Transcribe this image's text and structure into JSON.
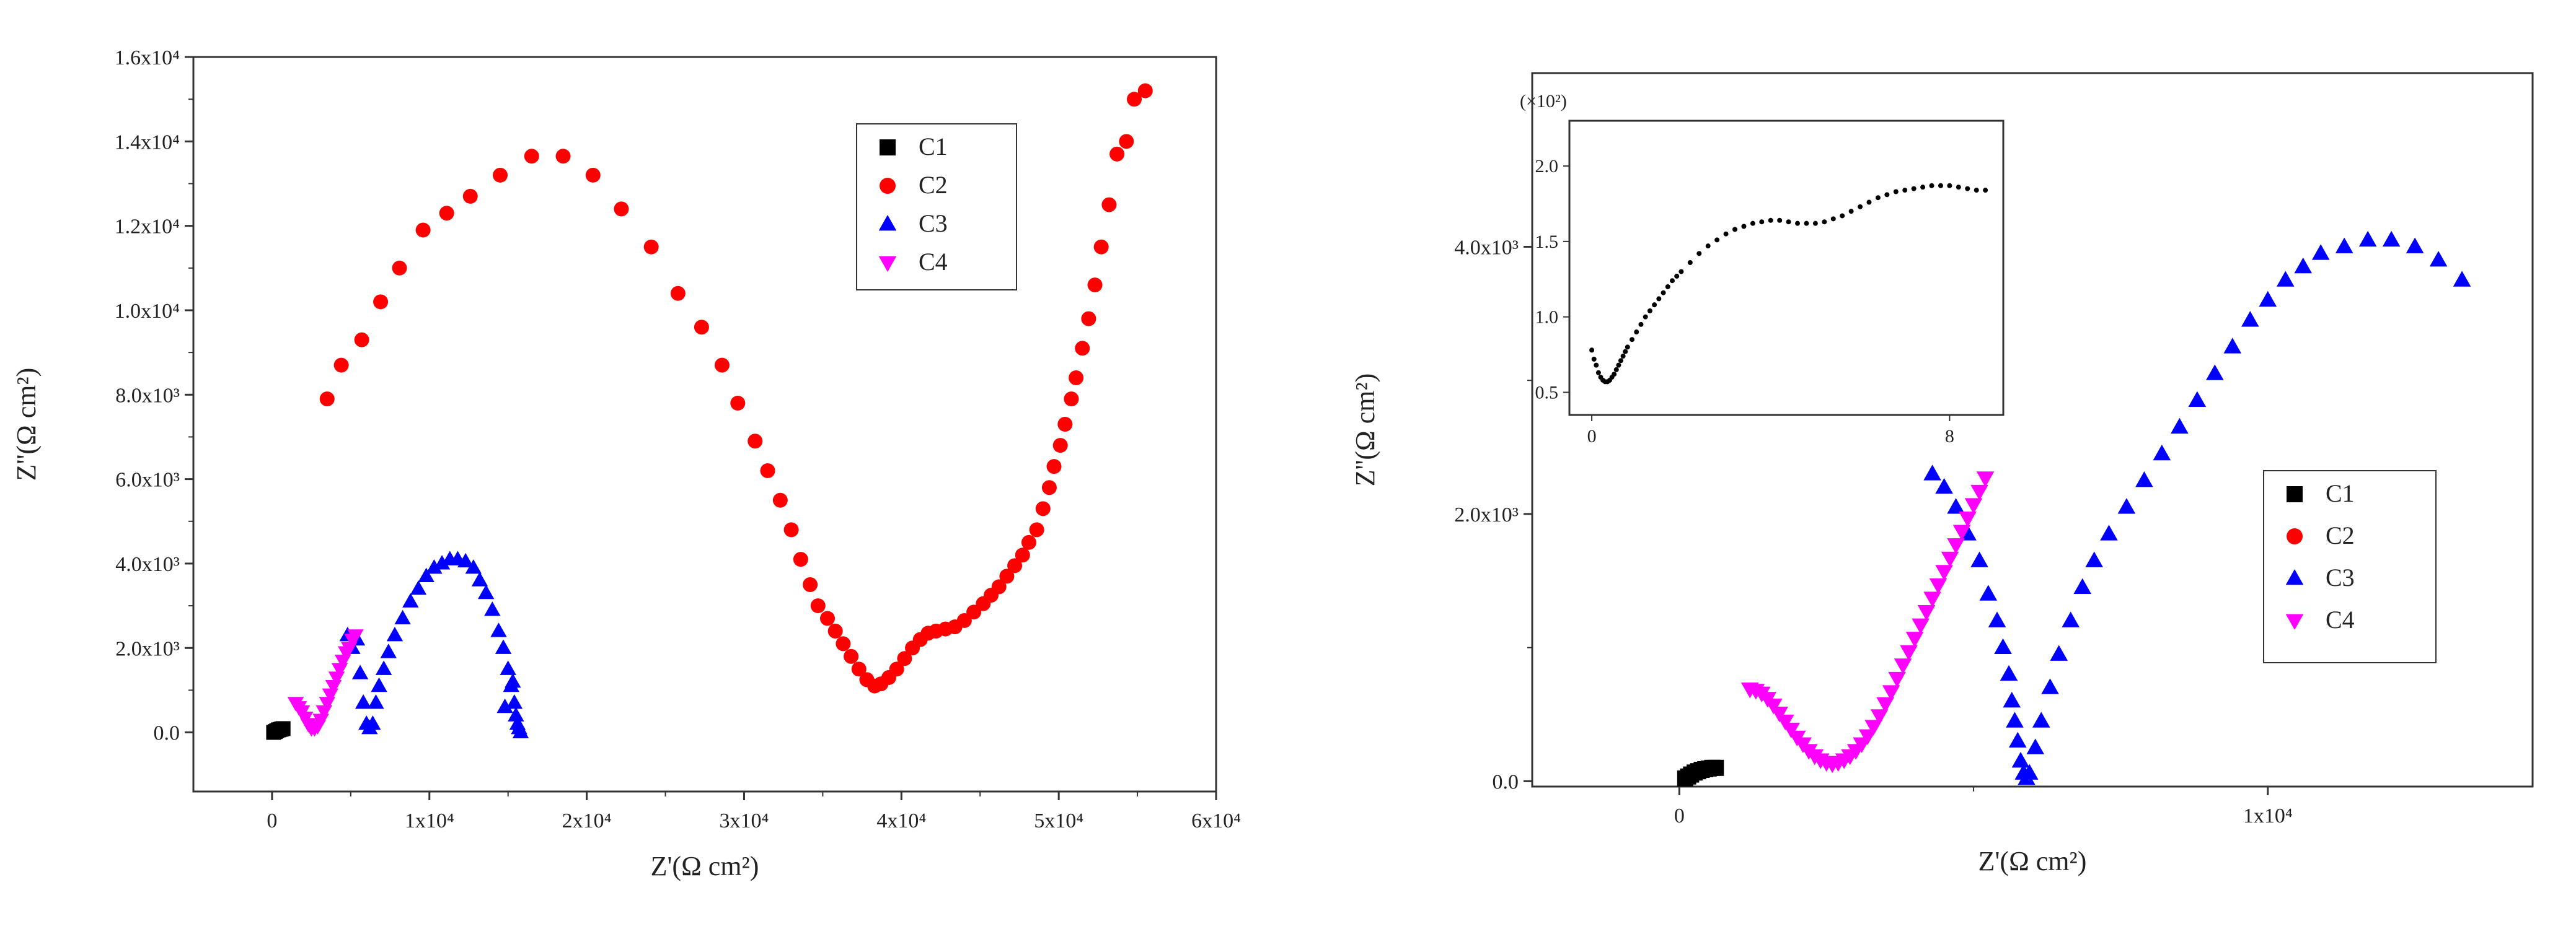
{
  "chart_data": [
    {
      "type": "scatter",
      "xlabel": "Z'(Ω cm²)",
      "ylabel": "Z''(Ω cm²)",
      "xlim": [
        -5000,
        60000
      ],
      "ylim": [
        -1400,
        16000
      ],
      "x_ticks": [
        {
          "v": 0,
          "label": "0"
        },
        {
          "v": 10000,
          "label": "1x10⁴"
        },
        {
          "v": 20000,
          "label": "2x10⁴"
        },
        {
          "v": 30000,
          "label": "3x10⁴"
        },
        {
          "v": 40000,
          "label": "4x10⁴"
        },
        {
          "v": 50000,
          "label": "5x10⁴"
        },
        {
          "v": 60000,
          "label": "6x10⁴"
        }
      ],
      "y_ticks": [
        {
          "v": 0,
          "label": "0.0"
        },
        {
          "v": 2000,
          "label": "2.0x10³"
        },
        {
          "v": 4000,
          "label": "4.0x10³"
        },
        {
          "v": 6000,
          "label": "6.0x10³"
        },
        {
          "v": 8000,
          "label": "8.0x10³"
        },
        {
          "v": 10000,
          "label": "1.0x10⁴"
        },
        {
          "v": 12000,
          "label": "1.2x10⁴"
        },
        {
          "v": 14000,
          "label": "1.4x10⁴"
        },
        {
          "v": 16000,
          "label": "1.6x10⁴"
        }
      ],
      "legend": {
        "placement": "top-right"
      },
      "series": [
        {
          "name": "C1",
          "marker": "square",
          "color": "#000000",
          "x": [
            100,
            200,
            300,
            400,
            500,
            600,
            700
          ],
          "y": [
            0,
            20,
            40,
            60,
            70,
            80,
            90
          ]
        },
        {
          "name": "C2",
          "marker": "circle",
          "color": "#ff0000",
          "x": [
            3500,
            4400,
            5700,
            6900,
            8100,
            9600,
            11100,
            12600,
            14500,
            16500,
            18500,
            20400,
            22200,
            24100,
            25800,
            27300,
            28600,
            29600,
            30700,
            31500,
            32300,
            33000,
            33600,
            34200,
            34700,
            35300,
            35800,
            36300,
            36800,
            37300,
            37800,
            38300,
            38700,
            39200,
            39700,
            40200,
            40700,
            41200,
            41700,
            42200,
            42800,
            43400,
            44000,
            44600,
            45200,
            45700,
            46200,
            46700,
            47200,
            47700,
            48100,
            48600,
            49000,
            49400,
            49700,
            50100,
            50400,
            50800,
            51100,
            51500,
            51900,
            52300,
            52700,
            53200,
            53700,
            54300,
            54800,
            55500
          ],
          "y": [
            7900,
            8700,
            9300,
            10200,
            11000,
            11900,
            12300,
            12700,
            13200,
            13650,
            13650,
            13200,
            12400,
            11500,
            10400,
            9600,
            8700,
            7800,
            6900,
            6200,
            5500,
            4800,
            4100,
            3500,
            3000,
            2700,
            2400,
            2100,
            1800,
            1500,
            1250,
            1100,
            1150,
            1300,
            1500,
            1750,
            2000,
            2200,
            2350,
            2400,
            2450,
            2500,
            2650,
            2850,
            3050,
            3250,
            3450,
            3700,
            3950,
            4200,
            4500,
            4800,
            5300,
            5800,
            6300,
            6800,
            7300,
            7900,
            8400,
            9100,
            9800,
            10600,
            11500,
            12500,
            13700,
            14000,
            15000,
            15200
          ]
        },
        {
          "name": "C3",
          "marker": "triangle-up",
          "color": "#0000ff",
          "x": [
            5400,
            5600,
            5800,
            6000,
            6200,
            6400,
            6600,
            6800,
            7100,
            7400,
            7800,
            8300,
            8800,
            9300,
            9800,
            10300,
            10800,
            11300,
            11800,
            12300,
            12800,
            13200,
            13600,
            14000,
            14400,
            14700,
            15000,
            15200,
            15400,
            15500,
            15600,
            15700,
            15800,
            4800,
            5100,
            14800,
            15300
          ],
          "y": [
            2200,
            1400,
            700,
            200,
            100,
            200,
            700,
            1100,
            1500,
            1900,
            2300,
            2700,
            3100,
            3400,
            3700,
            3900,
            4000,
            4100,
            4100,
            4050,
            3900,
            3600,
            3300,
            2900,
            2400,
            2000,
            1500,
            1100,
            700,
            400,
            200,
            100,
            0,
            2300,
            2000,
            600,
            1200
          ]
        },
        {
          "name": "C4",
          "marker": "triangle-down",
          "color": "#ff00ff",
          "x": [
            1500,
            1700,
            1900,
            2100,
            2300,
            2500,
            2700,
            2900,
            3100,
            3300,
            3500,
            3700,
            3900,
            4100,
            4300,
            4500,
            4700,
            4900,
            5100,
            5300
          ],
          "y": [
            700,
            600,
            500,
            350,
            200,
            100,
            100,
            150,
            300,
            500,
            700,
            900,
            1100,
            1300,
            1500,
            1700,
            1900,
            2000,
            2200,
            2300
          ]
        }
      ]
    },
    {
      "type": "scatter",
      "xlabel": "Z'(Ω cm²)",
      "ylabel": "Z''(Ω cm²)",
      "xlim": [
        -2500,
        14500
      ],
      "ylim": [
        -40,
        5300
      ],
      "x_ticks": [
        {
          "v": 0,
          "label": "0"
        },
        {
          "v": 10000,
          "label": "1x10⁴"
        }
      ],
      "y_ticks": [
        {
          "v": 0,
          "label": "0.0"
        },
        {
          "v": 2000,
          "label": "2.0x10³"
        },
        {
          "v": 4000,
          "label": "4.0x10³"
        }
      ],
      "legend": {
        "placement": "bottom-right"
      },
      "series": [
        {
          "name": "C1",
          "marker": "square",
          "color": "#000000",
          "x": [
            100,
            150,
            200,
            260,
            320,
            380,
            440,
            500,
            560,
            620
          ],
          "y": [
            20,
            35,
            50,
            65,
            75,
            85,
            90,
            95,
            100,
            100
          ]
        },
        {
          "name": "C2",
          "marker": "circle",
          "color": "#ff0000",
          "x": [],
          "y": []
        },
        {
          "name": "C3",
          "marker": "triangle-up",
          "color": "#0000ff",
          "x": [
            4300,
            4500,
            4700,
            4900,
            5100,
            5250,
            5400,
            5500,
            5600,
            5650,
            5700,
            5750,
            5800,
            5850,
            5900,
            5950,
            6050,
            6150,
            6300,
            6450,
            6650,
            6850,
            7050,
            7300,
            7600,
            7900,
            8200,
            8500,
            8800,
            9100,
            9400,
            9700,
            10000,
            10300,
            10600,
            10900,
            11300,
            11700,
            12100,
            12500,
            12900,
            13300
          ],
          "y": [
            2300,
            2200,
            2050,
            1850,
            1650,
            1400,
            1200,
            1000,
            800,
            600,
            450,
            300,
            150,
            60,
            20,
            60,
            250,
            450,
            700,
            950,
            1200,
            1450,
            1650,
            1850,
            2050,
            2250,
            2450,
            2650,
            2850,
            3050,
            3250,
            3450,
            3600,
            3750,
            3850,
            3950,
            4000,
            4050,
            4050,
            4000,
            3900,
            3750
          ]
        },
        {
          "name": "C4",
          "marker": "triangle-down",
          "color": "#ff00ff",
          "x": [
            1200,
            1300,
            1400,
            1500,
            1600,
            1700,
            1800,
            1900,
            2000,
            2100,
            2200,
            2300,
            2400,
            2500,
            2600,
            2700,
            2800,
            2900,
            3000,
            3100,
            3200,
            3300,
            3400,
            3500,
            3600,
            3700,
            3800,
            3900,
            4000,
            4100,
            4200,
            4300,
            4400,
            4500,
            4600,
            4700,
            4800,
            4900,
            5000,
            5100,
            5200
          ],
          "y": [
            690,
            680,
            660,
            620,
            570,
            510,
            450,
            390,
            330,
            280,
            230,
            190,
            160,
            140,
            130,
            140,
            160,
            190,
            230,
            280,
            340,
            410,
            490,
            580,
            670,
            770,
            870,
            970,
            1070,
            1170,
            1270,
            1370,
            1470,
            1570,
            1670,
            1770,
            1870,
            1970,
            2070,
            2170,
            2270
          ]
        }
      ],
      "inset": {
        "y_multiplier": "(×10²)",
        "x_ticks": [
          {
            "v": 0,
            "label": "0"
          },
          {
            "v": 8,
            "label": "8"
          }
        ],
        "y_ticks": [
          {
            "v": 0.5,
            "label": "0.5"
          },
          {
            "v": 1.0,
            "label": "1.0"
          },
          {
            "v": 1.5,
            "label": "1.5"
          },
          {
            "v": 2.0,
            "label": "2.0"
          }
        ],
        "xlim": [
          -0.5,
          9.2
        ],
        "ylim": [
          0.35,
          2.3
        ],
        "x": [
          0,
          0.05,
          0.1,
          0.15,
          0.2,
          0.25,
          0.3,
          0.35,
          0.4,
          0.45,
          0.5,
          0.55,
          0.6,
          0.65,
          0.7,
          0.75,
          0.8,
          0.9,
          1.0,
          1.1,
          1.2,
          1.3,
          1.4,
          1.5,
          1.6,
          1.7,
          1.8,
          1.9,
          2.0,
          2.2,
          2.4,
          2.6,
          2.8,
          3.0,
          3.2,
          3.4,
          3.6,
          3.8,
          4.0,
          4.2,
          4.4,
          4.6,
          4.8,
          5.0,
          5.2,
          5.4,
          5.6,
          5.8,
          6.0,
          6.2,
          6.4,
          6.6,
          6.8,
          7.0,
          7.2,
          7.4,
          7.6,
          7.8,
          8.0,
          8.2,
          8.4,
          8.6,
          8.8
        ],
        "y": [
          0.78,
          0.72,
          0.68,
          0.63,
          0.6,
          0.58,
          0.57,
          0.57,
          0.58,
          0.6,
          0.62,
          0.65,
          0.68,
          0.71,
          0.74,
          0.77,
          0.8,
          0.85,
          0.9,
          0.95,
          1.0,
          1.04,
          1.08,
          1.12,
          1.16,
          1.2,
          1.24,
          1.27,
          1.3,
          1.36,
          1.42,
          1.47,
          1.51,
          1.55,
          1.58,
          1.6,
          1.62,
          1.63,
          1.64,
          1.64,
          1.63,
          1.62,
          1.62,
          1.62,
          1.63,
          1.65,
          1.67,
          1.7,
          1.73,
          1.76,
          1.79,
          1.81,
          1.83,
          1.84,
          1.85,
          1.86,
          1.87,
          1.87,
          1.87,
          1.86,
          1.85,
          1.84,
          1.84
        ]
      }
    }
  ]
}
